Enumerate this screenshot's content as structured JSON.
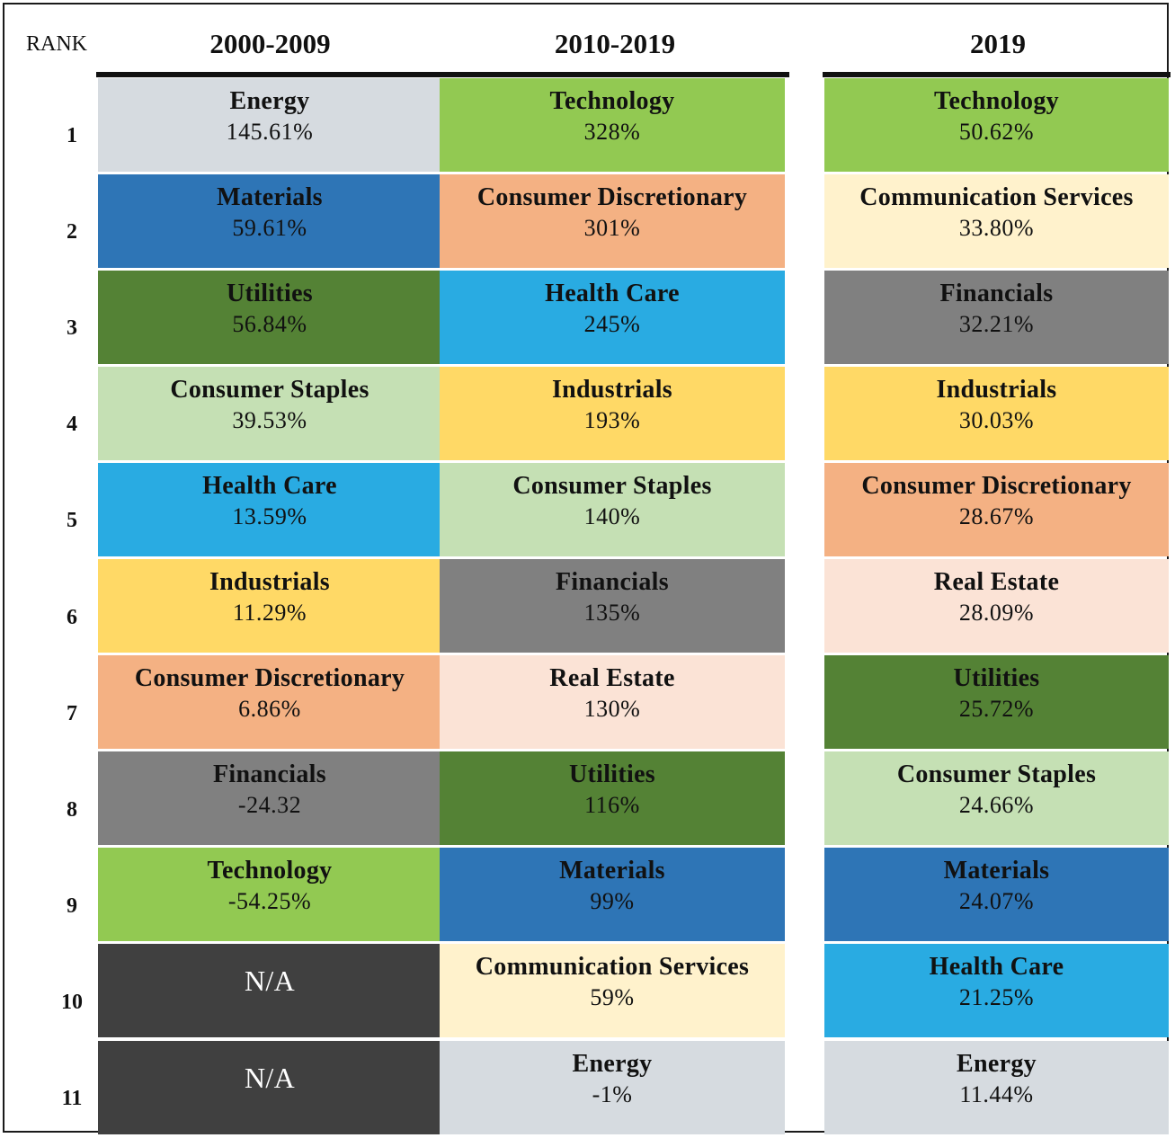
{
  "header": {
    "rank_label": "RANK",
    "columns": [
      "2000-2009",
      "2010-2019",
      "2019"
    ]
  },
  "ranks": [
    "1",
    "2",
    "3",
    "4",
    "5",
    "6",
    "7",
    "8",
    "9",
    "10",
    "11"
  ],
  "sector_colors": {
    "Energy": "#d6dbe0",
    "Materials": "#2e75b6",
    "Utilities": "#548235",
    "Consumer Staples": "#c5e0b4",
    "Health Care": "#29abe2",
    "Industrials": "#ffd966",
    "Consumer Discretionary": "#f4b183",
    "Financials": "#808080",
    "Technology": "#92c952",
    "Communication Services": "#fff2cc",
    "Real Estate": "#fbe3d6",
    "N/A": "#404040"
  },
  "chart_data": {
    "type": "table",
    "title": "",
    "columns": [
      "2000-2009",
      "2010-2019",
      "2019"
    ],
    "rows": [
      {
        "rank": 1,
        "cells": [
          {
            "sector": "Energy",
            "value": "145.61%"
          },
          {
            "sector": "Technology",
            "value": "328%"
          },
          {
            "sector": "Technology",
            "value": "50.62%"
          }
        ]
      },
      {
        "rank": 2,
        "cells": [
          {
            "sector": "Materials",
            "value": "59.61%"
          },
          {
            "sector": "Consumer Discretionary",
            "value": "301%"
          },
          {
            "sector": "Communication Services",
            "value": "33.80%"
          }
        ]
      },
      {
        "rank": 3,
        "cells": [
          {
            "sector": "Utilities",
            "value": "56.84%"
          },
          {
            "sector": "Health Care",
            "value": "245%"
          },
          {
            "sector": "Financials",
            "value": "32.21%"
          }
        ]
      },
      {
        "rank": 4,
        "cells": [
          {
            "sector": "Consumer Staples",
            "value": "39.53%"
          },
          {
            "sector": "Industrials",
            "value": "193%"
          },
          {
            "sector": "Industrials",
            "value": "30.03%"
          }
        ]
      },
      {
        "rank": 5,
        "cells": [
          {
            "sector": "Health Care",
            "value": "13.59%"
          },
          {
            "sector": "Consumer Staples",
            "value": "140%"
          },
          {
            "sector": "Consumer Discretionary",
            "value": "28.67%"
          }
        ]
      },
      {
        "rank": 6,
        "cells": [
          {
            "sector": "Industrials",
            "value": "11.29%"
          },
          {
            "sector": "Financials",
            "value": "135%"
          },
          {
            "sector": "Real Estate",
            "value": "28.09%"
          }
        ]
      },
      {
        "rank": 7,
        "cells": [
          {
            "sector": "Consumer Discretionary",
            "value": "6.86%"
          },
          {
            "sector": "Real Estate",
            "value": "130%"
          },
          {
            "sector": "Utilities",
            "value": "25.72%"
          }
        ]
      },
      {
        "rank": 8,
        "cells": [
          {
            "sector": "Financials",
            "value": "-24.32"
          },
          {
            "sector": "Utilities",
            "value": "116%"
          },
          {
            "sector": "Consumer Staples",
            "value": "24.66%"
          }
        ]
      },
      {
        "rank": 9,
        "cells": [
          {
            "sector": "Technology",
            "value": "-54.25%"
          },
          {
            "sector": "Materials",
            "value": "99%"
          },
          {
            "sector": "Materials",
            "value": "24.07%"
          }
        ]
      },
      {
        "rank": 10,
        "cells": [
          {
            "sector": "N/A",
            "value": ""
          },
          {
            "sector": "Communication Services",
            "value": "59%"
          },
          {
            "sector": "Health Care",
            "value": "21.25%"
          }
        ]
      },
      {
        "rank": 11,
        "cells": [
          {
            "sector": "N/A",
            "value": ""
          },
          {
            "sector": "Energy",
            "value": "-1%"
          },
          {
            "sector": "Energy",
            "value": "11.44%"
          }
        ]
      }
    ]
  }
}
